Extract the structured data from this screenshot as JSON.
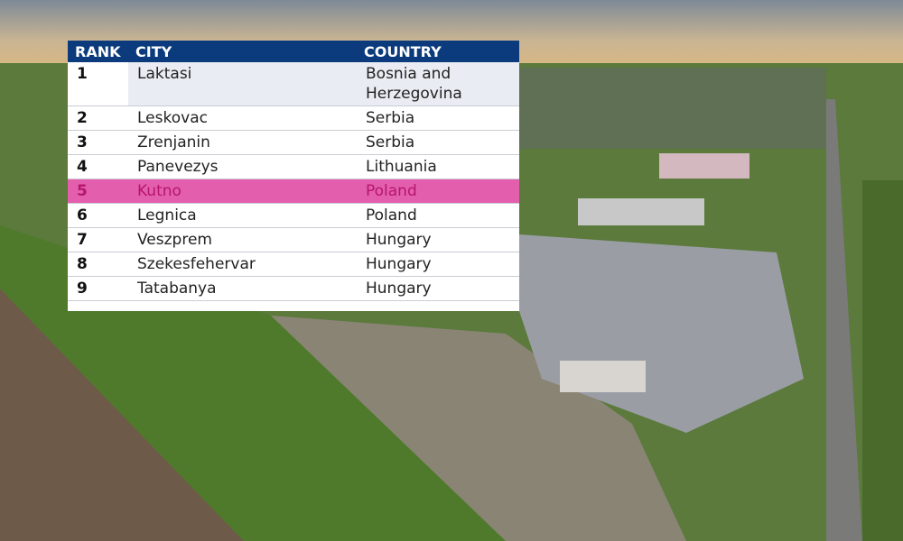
{
  "table": {
    "columns": [
      "RANK",
      "CITY",
      "COUNTRY"
    ],
    "rows": [
      [
        "1",
        "Laktasi",
        "Bosnia and Herzegovina"
      ],
      [
        "2",
        "Leskovac",
        "Serbia"
      ],
      [
        "3",
        "Zrenjanin",
        "Serbia"
      ],
      [
        "4",
        "Panevezys",
        "Lithuania"
      ],
      [
        "5",
        "Kutno",
        "Poland"
      ],
      [
        "6",
        "Legnica",
        "Poland"
      ],
      [
        "7",
        "Veszprem",
        "Hungary"
      ],
      [
        "8",
        "Szekesfehervar",
        "Hungary"
      ],
      [
        "9",
        "Tatabanya",
        "Hungary"
      ]
    ]
  }
}
